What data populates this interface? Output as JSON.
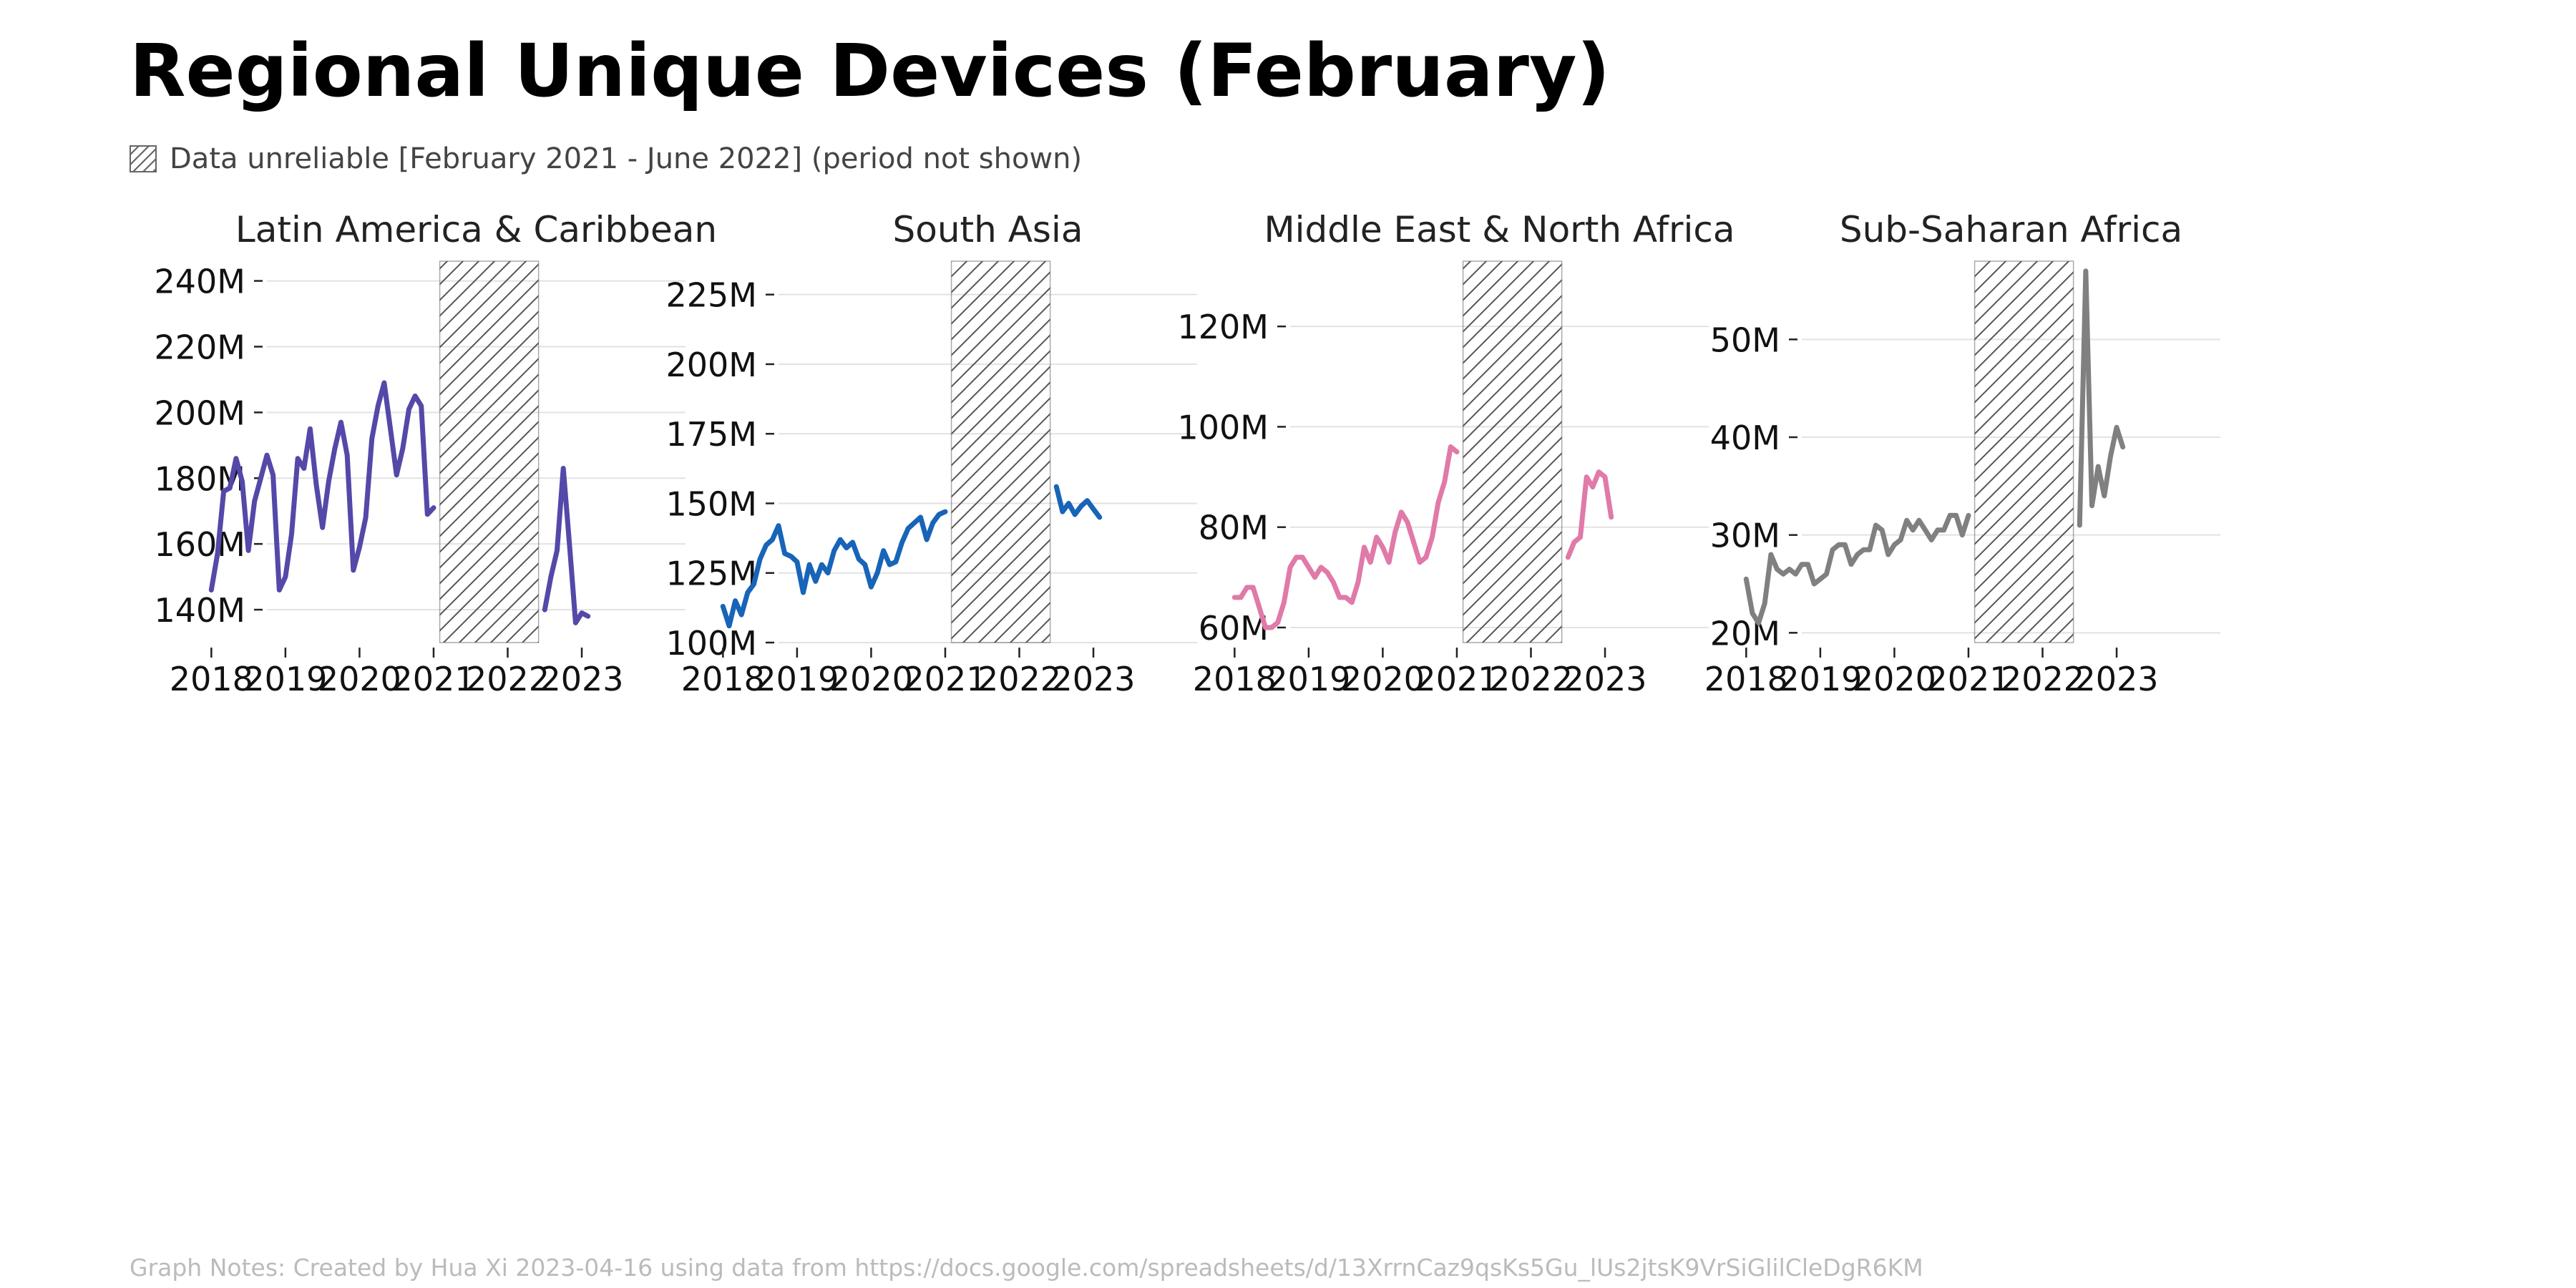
{
  "title": "Regional Unique Devices (February)",
  "legend": {
    "text": "Data unreliable [February 2021 - June 2022] (period not shown)"
  },
  "notes": "Graph Notes: Created by Hua Xi 2023-04-16 using data from https://docs.google.com/spreadsheets/d/13XrrnCaz9qsKs5Gu_lUs2jtsK9VrSiGlilCleDgR6KM",
  "chart_data": [
    {
      "type": "line",
      "title": "Latin America & Caribbean",
      "color": "#5448a8",
      "unreliable_period": [
        "2021-02",
        "2022-06"
      ],
      "xticks": [
        "2018",
        "2019",
        "2020",
        "2021",
        "2022",
        "2023"
      ],
      "yticks": [
        140,
        160,
        180,
        200,
        220,
        240
      ],
      "ytick_labels": [
        "140M",
        "160M",
        "180M",
        "200M",
        "220M",
        "240M"
      ],
      "ylim": [
        130,
        246
      ],
      "series": [
        {
          "x": [
            "2018-01",
            "2018-02",
            "2018-03",
            "2018-04",
            "2018-05",
            "2018-06",
            "2018-07",
            "2018-08",
            "2018-09",
            "2018-10",
            "2018-11",
            "2018-12",
            "2019-01",
            "2019-02",
            "2019-03",
            "2019-04",
            "2019-05",
            "2019-06",
            "2019-07",
            "2019-08",
            "2019-09",
            "2019-10",
            "2019-11",
            "2019-12",
            "2020-01",
            "2020-02",
            "2020-03",
            "2020-04",
            "2020-05",
            "2020-06",
            "2020-07",
            "2020-08",
            "2020-09",
            "2020-10",
            "2020-11",
            "2020-12",
            "2021-01"
          ],
          "y": [
            146,
            157,
            176,
            177,
            186,
            179,
            158,
            173,
            180,
            187,
            181,
            146,
            150,
            163,
            186,
            183,
            195,
            178,
            165,
            179,
            189,
            197,
            187,
            152,
            159,
            168,
            192,
            202,
            209,
            195,
            181,
            189,
            201,
            205,
            202,
            169,
            171
          ]
        },
        {
          "x": [
            "2022-07",
            "2022-08",
            "2022-09",
            "2022-10",
            "2022-11",
            "2022-12",
            "2023-01",
            "2023-02"
          ],
          "y": [
            140,
            150,
            158,
            183,
            160,
            136,
            139,
            138
          ]
        }
      ]
    },
    {
      "type": "line",
      "title": "South Asia",
      "color": "#1864b8",
      "unreliable_period": [
        "2021-02",
        "2022-06"
      ],
      "xticks": [
        "2018",
        "2019",
        "2020",
        "2021",
        "2022",
        "2023"
      ],
      "yticks": [
        100,
        125,
        150,
        175,
        200,
        225
      ],
      "ytick_labels": [
        "100M",
        "125M",
        "150M",
        "175M",
        "200M",
        "225M"
      ],
      "ylim": [
        100,
        237
      ],
      "series": [
        {
          "x": [
            "2018-01",
            "2018-02",
            "2018-03",
            "2018-04",
            "2018-05",
            "2018-06",
            "2018-07",
            "2018-08",
            "2018-09",
            "2018-10",
            "2018-11",
            "2018-12",
            "2019-01",
            "2019-02",
            "2019-03",
            "2019-04",
            "2019-05",
            "2019-06",
            "2019-07",
            "2019-08",
            "2019-09",
            "2019-10",
            "2019-11",
            "2019-12",
            "2020-01",
            "2020-02",
            "2020-03",
            "2020-04",
            "2020-05",
            "2020-06",
            "2020-07",
            "2020-08",
            "2020-09",
            "2020-10",
            "2020-11",
            "2020-12",
            "2021-01"
          ],
          "y": [
            113,
            106,
            115,
            110,
            118,
            121,
            130,
            135,
            137,
            142,
            132,
            131,
            129,
            118,
            128,
            122,
            128,
            125,
            133,
            137,
            134,
            136,
            130,
            128,
            120,
            125,
            133,
            128,
            129,
            136,
            141,
            143,
            145,
            137,
            143,
            146,
            147
          ]
        },
        {
          "x": [
            "2022-07",
            "2022-08",
            "2022-09",
            "2022-10",
            "2022-11",
            "2022-12",
            "2023-01",
            "2023-02"
          ],
          "y": [
            156,
            147,
            150,
            146,
            149,
            151,
            148,
            145
          ]
        }
      ]
    },
    {
      "type": "line",
      "title": "Middle East & North Africa",
      "color": "#e07aa8",
      "unreliable_period": [
        "2021-02",
        "2022-06"
      ],
      "xticks": [
        "2018",
        "2019",
        "2020",
        "2021",
        "2022",
        "2023"
      ],
      "yticks": [
        60,
        80,
        100,
        120
      ],
      "ytick_labels": [
        "60M",
        "80M",
        "100M",
        "120M"
      ],
      "ylim": [
        57,
        133
      ],
      "series": [
        {
          "x": [
            "2018-01",
            "2018-02",
            "2018-03",
            "2018-04",
            "2018-05",
            "2018-06",
            "2018-07",
            "2018-08",
            "2018-09",
            "2018-10",
            "2018-11",
            "2018-12",
            "2019-01",
            "2019-02",
            "2019-03",
            "2019-04",
            "2019-05",
            "2019-06",
            "2019-07",
            "2019-08",
            "2019-09",
            "2019-10",
            "2019-11",
            "2019-12",
            "2020-01",
            "2020-02",
            "2020-03",
            "2020-04",
            "2020-05",
            "2020-06",
            "2020-07",
            "2020-08",
            "2020-09",
            "2020-10",
            "2020-11",
            "2020-12",
            "2021-01"
          ],
          "y": [
            66,
            66,
            68,
            68,
            64,
            60,
            60,
            61,
            65,
            72,
            74,
            74,
            72,
            70,
            72,
            71,
            69,
            66,
            66,
            65,
            69,
            76,
            73,
            78,
            76,
            73,
            79,
            83,
            81,
            77,
            73,
            74,
            78,
            85,
            89,
            96,
            95
          ]
        },
        {
          "x": [
            "2022-07",
            "2022-08",
            "2022-09",
            "2022-10",
            "2022-11",
            "2022-12",
            "2023-01",
            "2023-02"
          ],
          "y": [
            74,
            77,
            78,
            90,
            88,
            91,
            90,
            82
          ]
        }
      ]
    },
    {
      "type": "line",
      "title": "Sub-Saharan Africa",
      "color": "#808080",
      "unreliable_period": [
        "2021-02",
        "2022-06"
      ],
      "xticks": [
        "2018",
        "2019",
        "2020",
        "2021",
        "2022",
        "2023"
      ],
      "yticks": [
        20,
        30,
        40,
        50
      ],
      "ytick_labels": [
        "20M",
        "30M",
        "40M",
        "50M"
      ],
      "ylim": [
        19,
        58
      ],
      "series": [
        {
          "x": [
            "2018-01",
            "2018-02",
            "2018-03",
            "2018-04",
            "2018-05",
            "2018-06",
            "2018-07",
            "2018-08",
            "2018-09",
            "2018-10",
            "2018-11",
            "2018-12",
            "2019-01",
            "2019-02",
            "2019-03",
            "2019-04",
            "2019-05",
            "2019-06",
            "2019-07",
            "2019-08",
            "2019-09",
            "2019-10",
            "2019-11",
            "2019-12",
            "2020-01",
            "2020-02",
            "2020-03",
            "2020-04",
            "2020-05",
            "2020-06",
            "2020-07",
            "2020-08",
            "2020-09",
            "2020-10",
            "2020-11",
            "2020-12",
            "2021-01"
          ],
          "y": [
            25.5,
            22,
            21,
            23,
            28,
            26.5,
            26,
            26.5,
            26,
            27,
            27,
            25,
            25.5,
            26,
            28.5,
            29,
            29,
            27,
            28,
            28.5,
            28.5,
            31,
            30.5,
            28,
            29,
            29.5,
            31.5,
            30.5,
            31.5,
            30.5,
            29.5,
            30.5,
            30.5,
            32,
            32,
            30,
            32
          ]
        },
        {
          "x": [
            "2022-07",
            "2022-08",
            "2022-09",
            "2022-10",
            "2022-11",
            "2022-12",
            "2023-01",
            "2023-02"
          ],
          "y": [
            31,
            57,
            33,
            37,
            34,
            38,
            41,
            39
          ]
        }
      ]
    }
  ]
}
